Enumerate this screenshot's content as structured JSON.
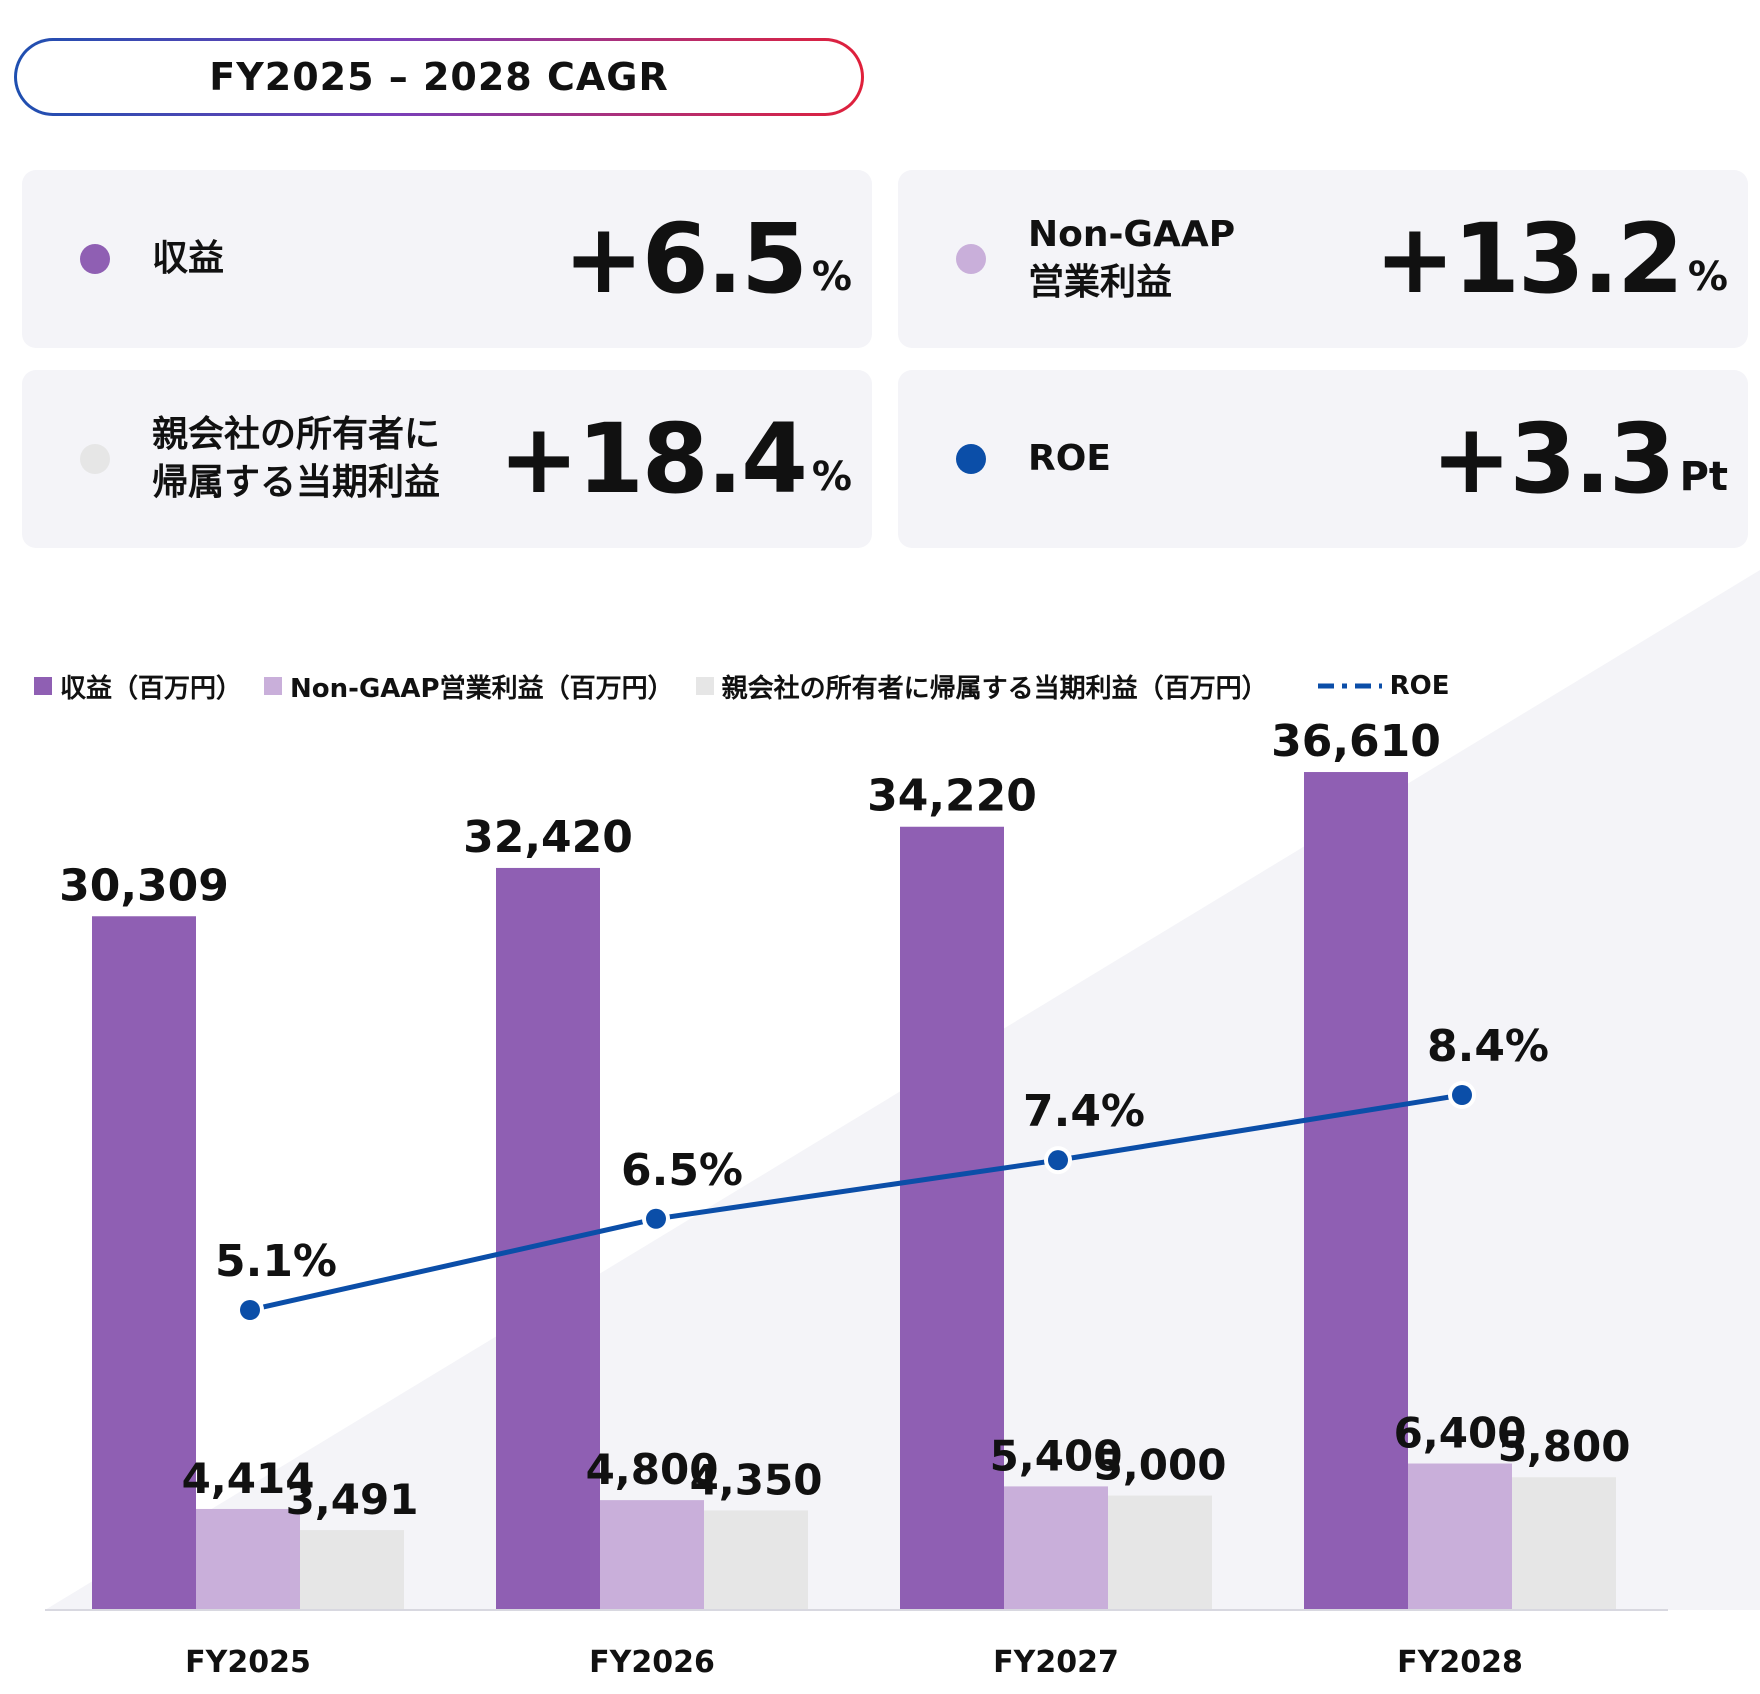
{
  "header": {
    "cagr_title": "FY2025 – 2028 CAGR"
  },
  "kpi_cards": [
    {
      "label": "収益",
      "value": "+6.5",
      "unit": "%",
      "dot_color": "#8f5fb3"
    },
    {
      "label": "Non-GAAP\n営業利益",
      "value": "+13.2",
      "unit": "%",
      "dot_color": "#c9afda"
    },
    {
      "label": "親会社の所有者に\n帰属する当期利益",
      "value": "+18.4",
      "unit": "%",
      "dot_color": "#e6e6e6"
    },
    {
      "label": "ROE",
      "value": "+3.3",
      "unit": "Pt",
      "dot_color": "#0b4ea8"
    }
  ],
  "legend": {
    "revenue": "収益（百万円）",
    "op_income": "Non-GAAP営業利益（百万円）",
    "net_income": "親会社の所有者に帰属する当期利益（百万円）",
    "roe": "ROE"
  },
  "colors": {
    "revenue": "#8f5fb3",
    "op_income": "#c9afda",
    "net_income": "#e6e6e6",
    "roe": "#0b4ea8",
    "background_triangle": "#f4f4f8"
  },
  "chart_data": {
    "type": "bar",
    "categories": [
      "FY2025",
      "FY2026",
      "FY2027",
      "FY2028"
    ],
    "series": [
      {
        "name": "収益（百万円）",
        "values": [
          30309,
          32420,
          34220,
          36610
        ],
        "labels": [
          "30,309",
          "32,420",
          "34,220",
          "36,610"
        ]
      },
      {
        "name": "Non-GAAP営業利益（百万円）",
        "values": [
          4414,
          4800,
          5400,
          6400
        ],
        "labels": [
          "4,414",
          "4,800",
          "5,400",
          "6,400"
        ]
      },
      {
        "name": "親会社の所有者に帰属する当期利益（百万円）",
        "values": [
          3491,
          4350,
          5000,
          5800
        ],
        "labels": [
          "3,491",
          "4,350",
          "5,000",
          "5,800"
        ]
      }
    ],
    "line_series": {
      "name": "ROE",
      "values": [
        5.1,
        6.5,
        7.4,
        8.4
      ],
      "labels": [
        "5.1%",
        "6.5%",
        "7.4%",
        "8.4%"
      ]
    },
    "ylim": [
      0,
      45000
    ],
    "grid": false,
    "legend_position": "top"
  }
}
